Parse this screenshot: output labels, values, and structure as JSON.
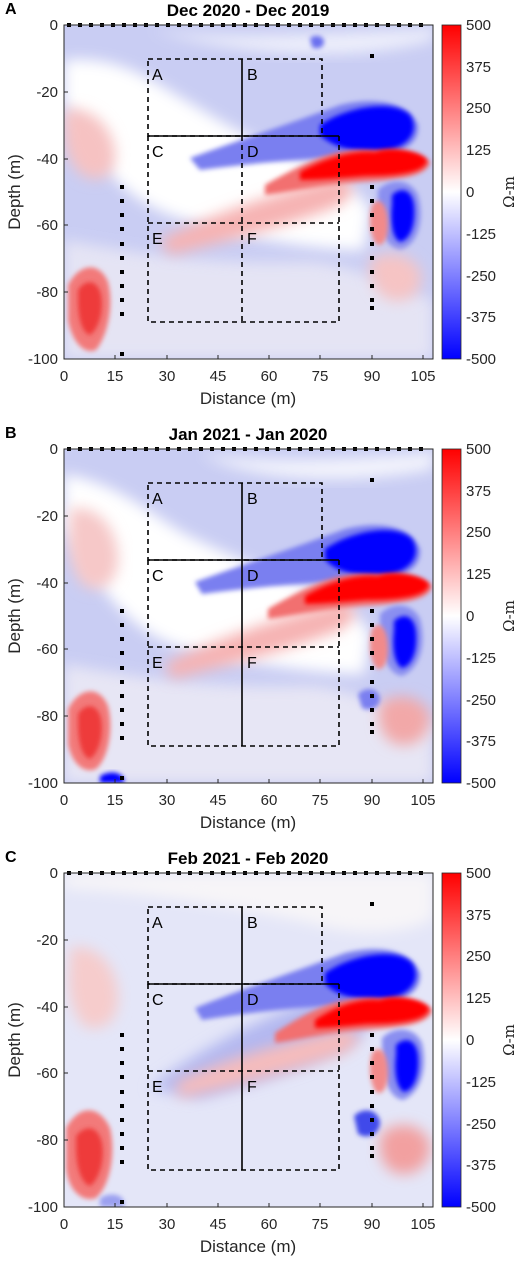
{
  "figure": {
    "xlabel": "Distance (m)",
    "ylabel": "Depth (m)",
    "colorbar_label": "Ω-m",
    "colorbar_ticks": [
      "500",
      "375",
      "250",
      "125",
      "0",
      "-125",
      "-250",
      "-375",
      "-500"
    ],
    "x_ticks": [
      "0",
      "15",
      "30",
      "45",
      "60",
      "75",
      "90",
      "105"
    ],
    "y_ticks": [
      "0",
      "-20",
      "-40",
      "-60",
      "-80",
      "-100"
    ],
    "zone_labels": [
      "A",
      "B",
      "C",
      "D",
      "E",
      "F"
    ]
  },
  "chart_data": [
    {
      "type": "heatmap",
      "panel_label": "A",
      "title": "Dec 2020 - Dec 2019",
      "xlabel": "Distance (m)",
      "ylabel": "Depth (m)",
      "xlim": [
        0,
        108
      ],
      "ylim": [
        -100,
        0
      ],
      "clim": [
        -500,
        500
      ],
      "colorbar_label": "Ω-m",
      "zones": {
        "A": {
          "x": [
            25,
            52
          ],
          "y": [
            -33,
            -10
          ]
        },
        "B": {
          "x": [
            52,
            76
          ],
          "y": [
            -33,
            -10
          ]
        },
        "C": {
          "x": [
            25,
            52
          ],
          "y": [
            -59,
            -33
          ]
        },
        "D": {
          "x": [
            52,
            81
          ],
          "y": [
            -59,
            -33
          ]
        },
        "E": {
          "x": [
            25,
            52
          ],
          "y": [
            -88,
            -59
          ]
        },
        "F": {
          "x": [
            52,
            81
          ],
          "y": [
            -88,
            -59
          ]
        }
      },
      "features": [
        {
          "kind": "low",
          "value": -500,
          "x": [
            70,
            93
          ],
          "y": [
            -38,
            -24
          ]
        },
        {
          "kind": "high",
          "value": 500,
          "x": [
            73,
            101
          ],
          "y": [
            -44,
            -36
          ]
        },
        {
          "kind": "low",
          "value": -500,
          "x": [
            92,
            101
          ],
          "y": [
            -65,
            -48
          ]
        },
        {
          "kind": "high",
          "value": 400,
          "x": [
            2,
            14
          ],
          "y": [
            -97,
            -70
          ]
        }
      ]
    },
    {
      "type": "heatmap",
      "panel_label": "B",
      "title": "Jan 2021 - Jan 2020",
      "xlabel": "Distance (m)",
      "ylabel": "Depth (m)",
      "xlim": [
        0,
        108
      ],
      "ylim": [
        -100,
        0
      ],
      "clim": [
        -500,
        500
      ],
      "colorbar_label": "Ω-m",
      "zones": {
        "A": {
          "x": [
            25,
            52
          ],
          "y": [
            -33,
            -10
          ]
        },
        "B": {
          "x": [
            52,
            76
          ],
          "y": [
            -33,
            -10
          ]
        },
        "C": {
          "x": [
            25,
            52
          ],
          "y": [
            -59,
            -33
          ]
        },
        "D": {
          "x": [
            52,
            81
          ],
          "y": [
            -59,
            -33
          ]
        },
        "E": {
          "x": [
            25,
            52
          ],
          "y": [
            -88,
            -59
          ]
        },
        "F": {
          "x": [
            52,
            81
          ],
          "y": [
            -88,
            -59
          ]
        }
      },
      "features": [
        {
          "kind": "low",
          "value": -500,
          "x": [
            72,
            95
          ],
          "y": [
            -38,
            -26
          ]
        },
        {
          "kind": "high",
          "value": 500,
          "x": [
            75,
            102
          ],
          "y": [
            -44,
            -36
          ]
        },
        {
          "kind": "low",
          "value": -500,
          "x": [
            92,
            101
          ],
          "y": [
            -68,
            -50
          ]
        },
        {
          "kind": "high",
          "value": 400,
          "x": [
            2,
            14
          ],
          "y": [
            -95,
            -70
          ]
        }
      ]
    },
    {
      "type": "heatmap",
      "panel_label": "C",
      "title": "Feb 2021 - Feb 2020",
      "xlabel": "Distance (m)",
      "ylabel": "Depth (m)",
      "xlim": [
        0,
        108
      ],
      "ylim": [
        -100,
        0
      ],
      "clim": [
        -500,
        500
      ],
      "colorbar_label": "Ω-m",
      "zones": {
        "A": {
          "x": [
            25,
            52
          ],
          "y": [
            -33,
            -10
          ]
        },
        "B": {
          "x": [
            52,
            76
          ],
          "y": [
            -33,
            -10
          ]
        },
        "C": {
          "x": [
            25,
            52
          ],
          "y": [
            -59,
            -33
          ]
        },
        "D": {
          "x": [
            52,
            81
          ],
          "y": [
            -59,
            -33
          ]
        },
        "E": {
          "x": [
            25,
            52
          ],
          "y": [
            -88,
            -59
          ]
        },
        "F": {
          "x": [
            52,
            81
          ],
          "y": [
            -88,
            -59
          ]
        }
      },
      "features": [
        {
          "kind": "low",
          "value": -500,
          "x": [
            72,
            96
          ],
          "y": [
            -38,
            -25
          ]
        },
        {
          "kind": "high",
          "value": 500,
          "x": [
            78,
            102
          ],
          "y": [
            -44,
            -36
          ]
        },
        {
          "kind": "low",
          "value": -500,
          "x": [
            93,
            101
          ],
          "y": [
            -67,
            -50
          ]
        },
        {
          "kind": "high",
          "value": 400,
          "x": [
            2,
            14
          ],
          "y": [
            -97,
            -70
          ]
        }
      ]
    }
  ]
}
